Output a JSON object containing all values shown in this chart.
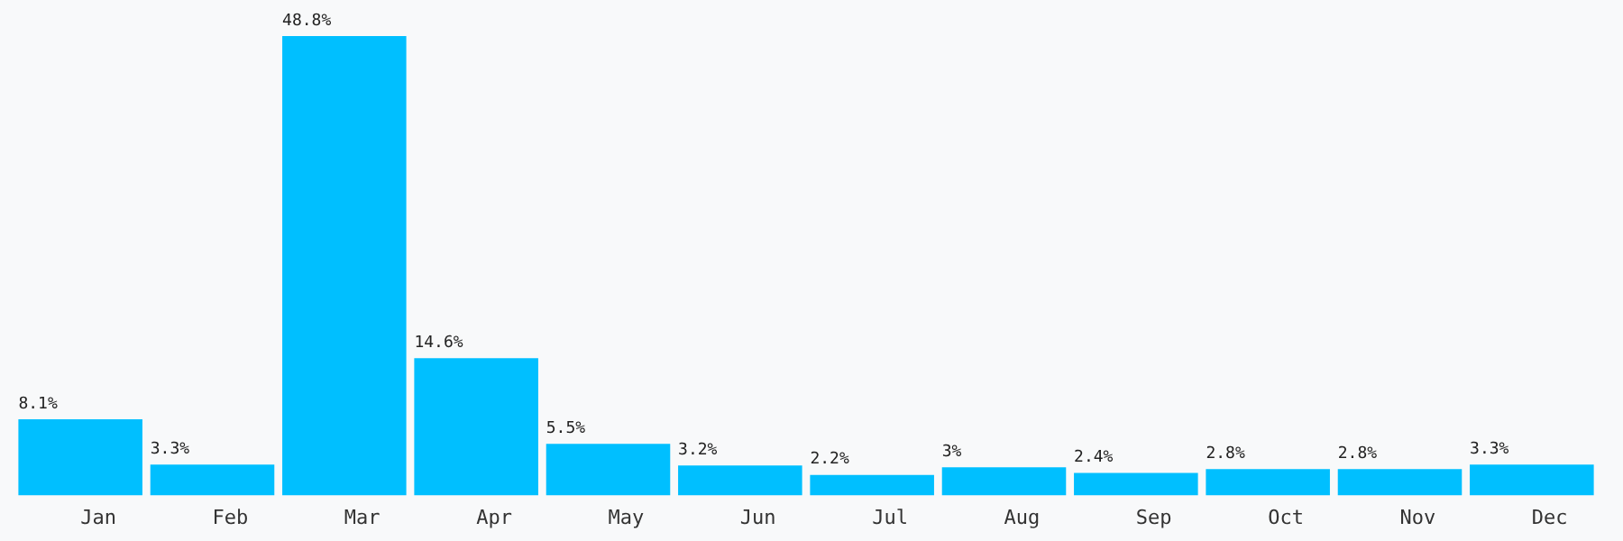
{
  "chart_data": {
    "type": "bar",
    "categories": [
      "Jan",
      "Feb",
      "Mar",
      "Apr",
      "May",
      "Jun",
      "Jul",
      "Aug",
      "Sep",
      "Oct",
      "Nov",
      "Dec"
    ],
    "values": [
      8.1,
      3.3,
      48.8,
      14.6,
      5.5,
      3.2,
      2.2,
      3,
      2.4,
      2.8,
      2.8,
      3.3
    ],
    "value_labels": [
      "8.1%",
      "3.3%",
      "48.8%",
      "14.6%",
      "5.5%",
      "3.2%",
      "2.2%",
      "3%",
      "2.4%",
      "2.8%",
      "2.8%",
      "3.3%"
    ],
    "color": "#00bfff",
    "grid": false,
    "legend": false
  }
}
